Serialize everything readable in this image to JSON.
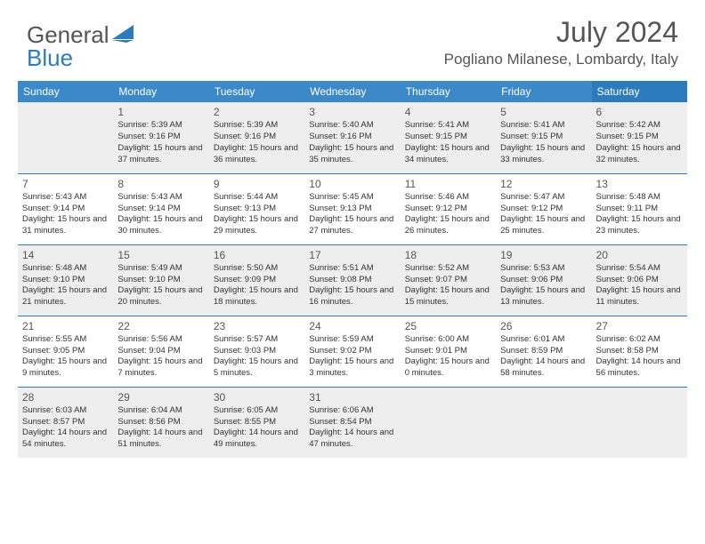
{
  "brand": {
    "part1": "General",
    "part2": "Blue"
  },
  "title": "July 2024",
  "location": "Pogliano Milanese, Lombardy, Italy",
  "colors": {
    "header_bg": "#3b89c9",
    "header_sat_bg": "#2b7bbd",
    "header_text": "#ffffff",
    "shaded_row": "#eeeeee",
    "separator": "#2b7bbd",
    "brand_blue": "#2b7bbd",
    "text": "#333333",
    "title_text": "#555555"
  },
  "day_headers": [
    "Sunday",
    "Monday",
    "Tuesday",
    "Wednesday",
    "Thursday",
    "Friday",
    "Saturday"
  ],
  "weeks": [
    {
      "shaded": true,
      "days": [
        null,
        {
          "n": "1",
          "sunrise": "5:39 AM",
          "sunset": "9:16 PM",
          "daylight": "15 hours and 37 minutes."
        },
        {
          "n": "2",
          "sunrise": "5:39 AM",
          "sunset": "9:16 PM",
          "daylight": "15 hours and 36 minutes."
        },
        {
          "n": "3",
          "sunrise": "5:40 AM",
          "sunset": "9:16 PM",
          "daylight": "15 hours and 35 minutes."
        },
        {
          "n": "4",
          "sunrise": "5:41 AM",
          "sunset": "9:15 PM",
          "daylight": "15 hours and 34 minutes."
        },
        {
          "n": "5",
          "sunrise": "5:41 AM",
          "sunset": "9:15 PM",
          "daylight": "15 hours and 33 minutes."
        },
        {
          "n": "6",
          "sunrise": "5:42 AM",
          "sunset": "9:15 PM",
          "daylight": "15 hours and 32 minutes."
        }
      ]
    },
    {
      "shaded": false,
      "days": [
        {
          "n": "7",
          "sunrise": "5:43 AM",
          "sunset": "9:14 PM",
          "daylight": "15 hours and 31 minutes."
        },
        {
          "n": "8",
          "sunrise": "5:43 AM",
          "sunset": "9:14 PM",
          "daylight": "15 hours and 30 minutes."
        },
        {
          "n": "9",
          "sunrise": "5:44 AM",
          "sunset": "9:13 PM",
          "daylight": "15 hours and 29 minutes."
        },
        {
          "n": "10",
          "sunrise": "5:45 AM",
          "sunset": "9:13 PM",
          "daylight": "15 hours and 27 minutes."
        },
        {
          "n": "11",
          "sunrise": "5:46 AM",
          "sunset": "9:12 PM",
          "daylight": "15 hours and 26 minutes."
        },
        {
          "n": "12",
          "sunrise": "5:47 AM",
          "sunset": "9:12 PM",
          "daylight": "15 hours and 25 minutes."
        },
        {
          "n": "13",
          "sunrise": "5:48 AM",
          "sunset": "9:11 PM",
          "daylight": "15 hours and 23 minutes."
        }
      ]
    },
    {
      "shaded": true,
      "days": [
        {
          "n": "14",
          "sunrise": "5:48 AM",
          "sunset": "9:10 PM",
          "daylight": "15 hours and 21 minutes."
        },
        {
          "n": "15",
          "sunrise": "5:49 AM",
          "sunset": "9:10 PM",
          "daylight": "15 hours and 20 minutes."
        },
        {
          "n": "16",
          "sunrise": "5:50 AM",
          "sunset": "9:09 PM",
          "daylight": "15 hours and 18 minutes."
        },
        {
          "n": "17",
          "sunrise": "5:51 AM",
          "sunset": "9:08 PM",
          "daylight": "15 hours and 16 minutes."
        },
        {
          "n": "18",
          "sunrise": "5:52 AM",
          "sunset": "9:07 PM",
          "daylight": "15 hours and 15 minutes."
        },
        {
          "n": "19",
          "sunrise": "5:53 AM",
          "sunset": "9:06 PM",
          "daylight": "15 hours and 13 minutes."
        },
        {
          "n": "20",
          "sunrise": "5:54 AM",
          "sunset": "9:06 PM",
          "daylight": "15 hours and 11 minutes."
        }
      ]
    },
    {
      "shaded": false,
      "days": [
        {
          "n": "21",
          "sunrise": "5:55 AM",
          "sunset": "9:05 PM",
          "daylight": "15 hours and 9 minutes."
        },
        {
          "n": "22",
          "sunrise": "5:56 AM",
          "sunset": "9:04 PM",
          "daylight": "15 hours and 7 minutes."
        },
        {
          "n": "23",
          "sunrise": "5:57 AM",
          "sunset": "9:03 PM",
          "daylight": "15 hours and 5 minutes."
        },
        {
          "n": "24",
          "sunrise": "5:59 AM",
          "sunset": "9:02 PM",
          "daylight": "15 hours and 3 minutes."
        },
        {
          "n": "25",
          "sunrise": "6:00 AM",
          "sunset": "9:01 PM",
          "daylight": "15 hours and 0 minutes."
        },
        {
          "n": "26",
          "sunrise": "6:01 AM",
          "sunset": "8:59 PM",
          "daylight": "14 hours and 58 minutes."
        },
        {
          "n": "27",
          "sunrise": "6:02 AM",
          "sunset": "8:58 PM",
          "daylight": "14 hours and 56 minutes."
        }
      ]
    },
    {
      "shaded": true,
      "days": [
        {
          "n": "28",
          "sunrise": "6:03 AM",
          "sunset": "8:57 PM",
          "daylight": "14 hours and 54 minutes."
        },
        {
          "n": "29",
          "sunrise": "6:04 AM",
          "sunset": "8:56 PM",
          "daylight": "14 hours and 51 minutes."
        },
        {
          "n": "30",
          "sunrise": "6:05 AM",
          "sunset": "8:55 PM",
          "daylight": "14 hours and 49 minutes."
        },
        {
          "n": "31",
          "sunrise": "6:06 AM",
          "sunset": "8:54 PM",
          "daylight": "14 hours and 47 minutes."
        },
        null,
        null,
        null
      ]
    }
  ],
  "labels": {
    "sunrise": "Sunrise:",
    "sunset": "Sunset:",
    "daylight": "Daylight:"
  }
}
